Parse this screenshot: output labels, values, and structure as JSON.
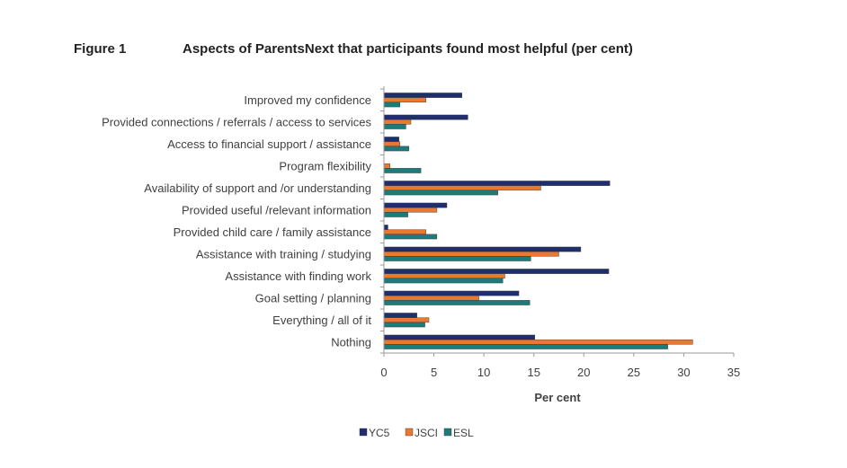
{
  "figure": {
    "label": "Figure 1",
    "title": "Aspects of ParentsNext that participants found most helpful (per cent)"
  },
  "colors": {
    "YC5": "#1f2f6e",
    "JSCI": "#e8792e",
    "ESL": "#1d7b7a",
    "axis": "#9a9a9a"
  },
  "chart_data": {
    "type": "bar",
    "orientation": "horizontal",
    "title": "Aspects of ParentsNext that participants found most helpful (per cent)",
    "xlabel": "Per cent",
    "ylabel": "",
    "xlim": [
      0,
      35
    ],
    "xticks": [
      0,
      5,
      10,
      15,
      20,
      25,
      30,
      35
    ],
    "categories": [
      "Improved my confidence",
      "Provided connections / referrals / access to services",
      "Access to financial support / assistance",
      "Program flexibility",
      "Availability of support and /or understanding",
      "Provided useful /relevant information",
      "Provided child care / family assistance",
      "Assistance with training / studying",
      "Assistance with finding work",
      "Goal setting / planning",
      "Everything / all of it",
      "Nothing"
    ],
    "series": [
      {
        "name": "YC5",
        "values": [
          7.8,
          8.4,
          1.5,
          0.0,
          22.6,
          6.3,
          0.4,
          19.7,
          22.5,
          13.5,
          3.3,
          15.1
        ]
      },
      {
        "name": "JSCI",
        "values": [
          4.2,
          2.7,
          1.6,
          0.6,
          15.7,
          5.3,
          4.2,
          17.5,
          12.1,
          9.5,
          4.5,
          30.9
        ]
      },
      {
        "name": "ESL",
        "values": [
          1.6,
          2.2,
          2.5,
          3.7,
          11.4,
          2.4,
          5.3,
          14.7,
          11.9,
          14.6,
          4.1,
          28.4
        ]
      }
    ],
    "legend_position": "bottom-center",
    "grid": false
  }
}
